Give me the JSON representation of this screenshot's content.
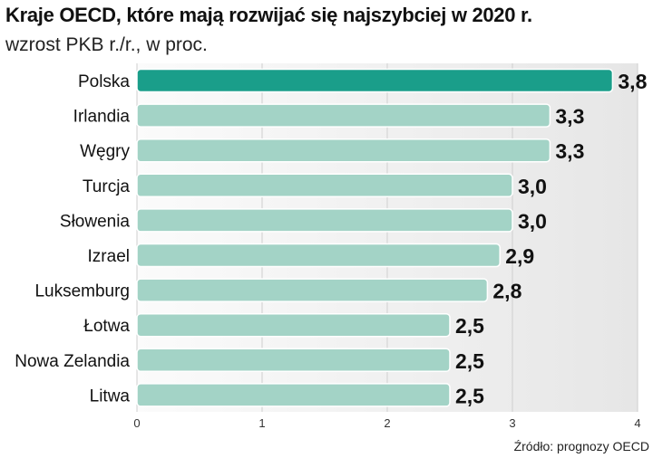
{
  "header": {
    "title": "Kraje OECD, które mają rozwijać się najszybciej w 2020 r.",
    "subtitle": "wzrost PKB r./r., w proc."
  },
  "footer": {
    "source": "Źródło: prognozy OECD"
  },
  "colors": {
    "highlight_bar": "#1a9e8a",
    "bar": "#a3d3c6",
    "bar_stroke": "#ffffff",
    "grid": "#cfcfcf",
    "panel_left": "#fbfbfb",
    "panel_right": "#e6e6e6"
  },
  "chart_data": {
    "type": "bar",
    "orientation": "horizontal",
    "title": "Kraje OECD, które mają rozwijać się najszybciej w 2020 r.",
    "subtitle": "wzrost PKB r./r., w proc.",
    "categories": [
      "Polska",
      "Irlandia",
      "Węgry",
      "Turcja",
      "Słowenia",
      "Izrael",
      "Luksemburg",
      "Łotwa",
      "Nowa Zelandia",
      "Litwa"
    ],
    "values": [
      3.8,
      3.3,
      3.3,
      3.0,
      3.0,
      2.9,
      2.8,
      2.5,
      2.5,
      2.5
    ],
    "value_labels": [
      "3,8",
      "3,3",
      "3,3",
      "3,0",
      "3,0",
      "2,9",
      "2,8",
      "2,5",
      "2,5",
      "2,5"
    ],
    "highlight": "Polska",
    "xlim": [
      0,
      4
    ],
    "xticks": [
      0,
      1,
      2,
      3,
      4
    ],
    "xtick_labels": [
      "0",
      "1",
      "2",
      "3",
      "4"
    ],
    "xlabel": "",
    "ylabel": "",
    "grid": true,
    "legend": "none"
  }
}
